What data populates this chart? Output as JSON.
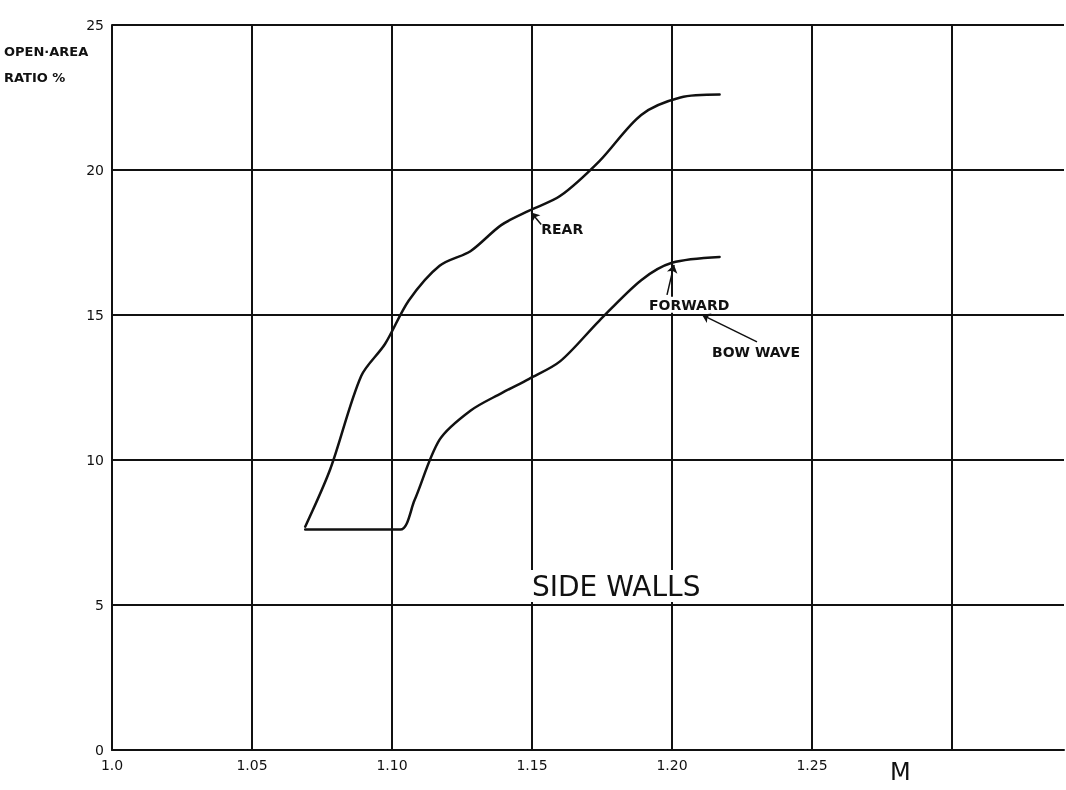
{
  "chart_data": {
    "type": "line",
    "title": "SIDE WALLS",
    "xlabel": "M",
    "ylabel": "OPEN·AREA RATIO %",
    "series": [
      {
        "color": "#111111",
        "x": [
          1.069,
          1.078,
          1.089,
          1.0975,
          1.106,
          1.117,
          1.128,
          1.139,
          1.149,
          1.16,
          1.174,
          1.189,
          1.203,
          1.217
        ],
        "values": [
          7.7,
          9.7,
          12.9,
          14.0,
          15.5,
          16.7,
          17.2,
          18.1,
          18.6,
          19.1,
          20.3,
          21.9,
          22.5,
          22.6
        ]
      },
      {
        "color": "#111111",
        "x": [
          1.069,
          1.085,
          1.103,
          1.108,
          1.117,
          1.128,
          1.139,
          1.149,
          1.16,
          1.174,
          1.189,
          1.2,
          1.217
        ],
        "values": [
          7.6,
          7.6,
          7.6,
          8.6,
          10.7,
          11.7,
          12.3,
          12.8,
          13.4,
          14.8,
          16.2,
          16.8,
          17.0
        ]
      }
    ],
    "annotations": [
      {
        "text": "REAR",
        "x": 1.149,
        "y": 18.6
      },
      {
        "text": "FORWARD",
        "x": 1.2,
        "y": 16.8
      },
      "BOW WAVE"
    ],
    "xlim": [
      1.0,
      1.34
    ],
    "xticks": [
      {
        "value": 1.0,
        "label": "1.0"
      },
      1.05,
      {
        "value": 1.1,
        "label": "1.10"
      },
      1.15,
      {
        "value": 1.2,
        "label": "1.20"
      },
      1.25,
      {
        "value": 1.3,
        "label": null
      }
    ],
    "ylim": [
      0,
      25
    ],
    "yticks": [
      0,
      5,
      10,
      15,
      20,
      25
    ],
    "grid": true,
    "marker": "none",
    "line_style": "solid"
  }
}
